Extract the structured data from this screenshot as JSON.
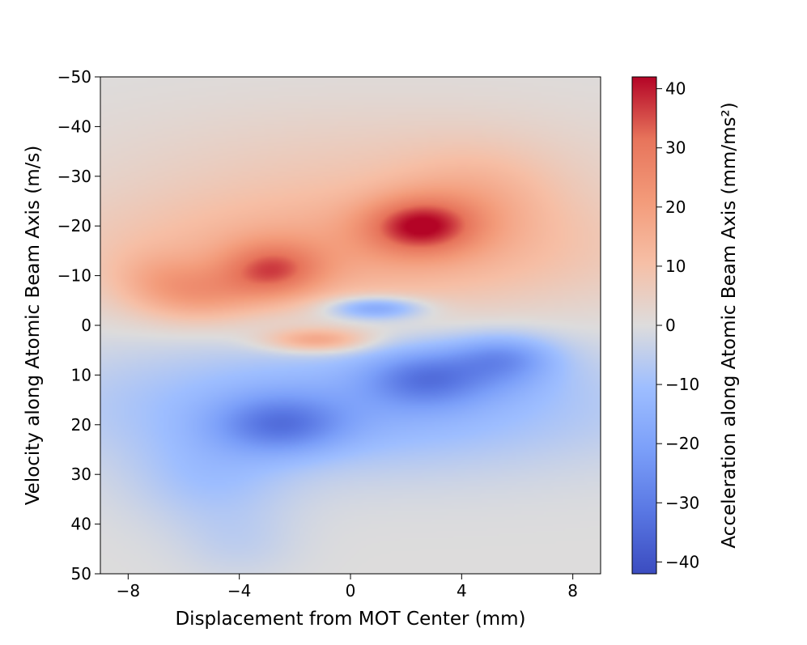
{
  "chart_data": {
    "type": "heatmap",
    "title": "",
    "xlabel": "Displacement from MOT Center (mm)",
    "ylabel": "Velocity along Atomic Beam Axis (m/s)",
    "colorbar_label": "Acceleration along Atomic Beam Axis (mm/ms²)",
    "colormap": "coolwarm",
    "xlim": [
      -9,
      9
    ],
    "ylim": [
      50,
      -50
    ],
    "clim": [
      -42,
      42
    ],
    "x_ticks": [
      {
        "value": -8,
        "label": "−8"
      },
      {
        "value": -4,
        "label": "−4"
      },
      {
        "value": 0,
        "label": "0"
      },
      {
        "value": 4,
        "label": "4"
      },
      {
        "value": 8,
        "label": "8"
      }
    ],
    "y_ticks": [
      {
        "value": -50,
        "label": "−50"
      },
      {
        "value": -40,
        "label": "−40"
      },
      {
        "value": -30,
        "label": "−30"
      },
      {
        "value": -20,
        "label": "−20"
      },
      {
        "value": -10,
        "label": "−10"
      },
      {
        "value": 0,
        "label": "0"
      },
      {
        "value": 10,
        "label": "10"
      },
      {
        "value": 20,
        "label": "20"
      },
      {
        "value": 30,
        "label": "30"
      },
      {
        "value": 40,
        "label": "40"
      },
      {
        "value": 50,
        "label": "50"
      }
    ],
    "colorbar_ticks": [
      {
        "value": 40,
        "label": "40"
      },
      {
        "value": 30,
        "label": "30"
      },
      {
        "value": 20,
        "label": "20"
      },
      {
        "value": 10,
        "label": "10"
      },
      {
        "value": 0,
        "label": "0"
      },
      {
        "value": -10,
        "label": "−10"
      },
      {
        "value": -20,
        "label": "−20"
      },
      {
        "value": -30,
        "label": "−30"
      },
      {
        "value": -40,
        "label": "−40"
      }
    ],
    "field_components": [
      {
        "x": 2.5,
        "y": -20,
        "sx": 1.4,
        "sy": 4,
        "amp": 26
      },
      {
        "x": -2.8,
        "y": -11,
        "sx": 1.3,
        "sy": 4,
        "amp": 22
      },
      {
        "x": -5.5,
        "y": -6,
        "sx": 1.6,
        "sy": 4,
        "amp": 14
      },
      {
        "x": 0,
        "y": -15,
        "sx": 7,
        "sy": 9,
        "amp": 16
      },
      {
        "x": 4.5,
        "y": -26,
        "sx": 2,
        "sy": 7,
        "amp": 8
      },
      {
        "x": 1,
        "y": -33,
        "sx": 7,
        "sy": 9,
        "amp": 5
      },
      {
        "x": -7,
        "y": -10,
        "sx": 1.2,
        "sy": 4,
        "amp": 6
      },
      {
        "x": 0.9,
        "y": -3.5,
        "sx": 1.2,
        "sy": 1.6,
        "amp": -22
      },
      {
        "x": -1.2,
        "y": 3,
        "sx": 1.3,
        "sy": 1.7,
        "amp": 20
      },
      {
        "x": -2.5,
        "y": 20,
        "sx": 1.6,
        "sy": 4,
        "amp": -20
      },
      {
        "x": 2.7,
        "y": 10.5,
        "sx": 1.5,
        "sy": 4,
        "amp": -21
      },
      {
        "x": 5.5,
        "y": 6,
        "sx": 1.3,
        "sy": 3,
        "amp": -13
      },
      {
        "x": 0,
        "y": 16,
        "sx": 7,
        "sy": 9,
        "amp": -15
      },
      {
        "x": -5,
        "y": 31,
        "sx": 2,
        "sy": 7,
        "amp": -8
      },
      {
        "x": -4,
        "y": 44,
        "sx": 1.5,
        "sy": 5,
        "amp": -4
      },
      {
        "x": 5.5,
        "y": 9,
        "sx": 1.4,
        "sy": 4,
        "amp": -8
      }
    ]
  }
}
